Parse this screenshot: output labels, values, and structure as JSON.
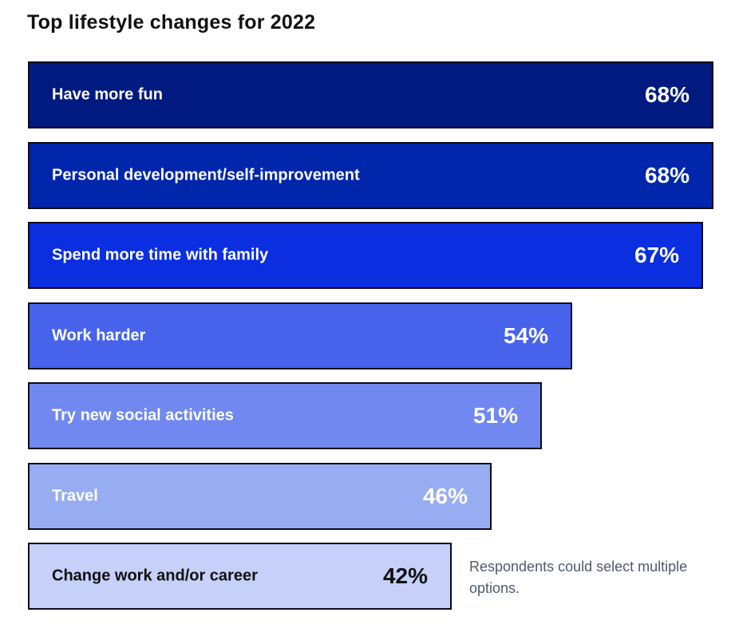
{
  "chart_data": {
    "type": "bar",
    "orientation": "horizontal",
    "title": "Top lifestyle changes for 2022",
    "categories": [
      "Have more fun",
      "Personal development/self-improvement",
      "Spend more time with family",
      "Work harder",
      "Try new social activities",
      "Travel",
      "Change work and/or career"
    ],
    "values": [
      68,
      68,
      67,
      54,
      51,
      46,
      42
    ],
    "value_labels": [
      "68%",
      "68%",
      "67%",
      "54%",
      "51%",
      "46%",
      "42%"
    ],
    "bar_colors": [
      "#001a80",
      "#0026ab",
      "#0a2ee0",
      "#4763ec",
      "#7088ef",
      "#98acf2",
      "#c6d0f9"
    ],
    "label_colors": [
      "#ffffff",
      "#ffffff",
      "#ffffff",
      "#ffffff",
      "#ffffff",
      "#ffffff",
      "#111111"
    ],
    "xlim": [
      0,
      68
    ],
    "grid": false,
    "legend": "none"
  },
  "note": "Respondents could select multiple options."
}
